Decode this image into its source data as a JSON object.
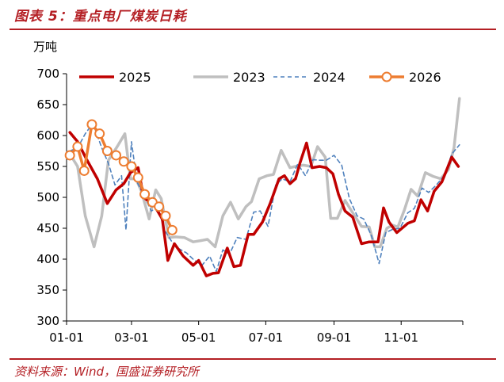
{
  "title": "图表 5：重点电厂煤炭日耗",
  "unit_label": "万吨",
  "source": "资料来源：Wind，国盛证券研究所",
  "chart_data": {
    "type": "line",
    "ylim": [
      300,
      700
    ],
    "yticks": [
      300,
      350,
      400,
      450,
      500,
      550,
      600,
      650,
      700
    ],
    "xlim": [
      0,
      360
    ],
    "xticks": [
      {
        "label": "01-01",
        "x": 0
      },
      {
        "label": "03-01",
        "x": 59
      },
      {
        "label": "05-01",
        "x": 120
      },
      {
        "label": "07-01",
        "x": 181
      },
      {
        "label": "09-01",
        "x": 243
      },
      {
        "label": "11-01",
        "x": 304
      }
    ],
    "legend": [
      "2025",
      "2023",
      "2024",
      "2026"
    ],
    "series": [
      {
        "name": "2025",
        "color": "#c00000",
        "width": 3.5,
        "dash": "",
        "markers": false,
        "points": [
          [
            3,
            605
          ],
          [
            10,
            590
          ],
          [
            18,
            562
          ],
          [
            28,
            530
          ],
          [
            37,
            490
          ],
          [
            45,
            512
          ],
          [
            52,
            522
          ],
          [
            58,
            540
          ],
          [
            65,
            548
          ],
          [
            70,
            500
          ],
          [
            80,
            486
          ],
          [
            87,
            465
          ],
          [
            92,
            398
          ],
          [
            98,
            425
          ],
          [
            106,
            405
          ],
          [
            115,
            390
          ],
          [
            120,
            398
          ],
          [
            127,
            373
          ],
          [
            133,
            377
          ],
          [
            138,
            378
          ],
          [
            146,
            418
          ],
          [
            152,
            388
          ],
          [
            158,
            390
          ],
          [
            165,
            440
          ],
          [
            170,
            440
          ],
          [
            178,
            460
          ],
          [
            185,
            490
          ],
          [
            193,
            530
          ],
          [
            198,
            535
          ],
          [
            203,
            522
          ],
          [
            208,
            530
          ],
          [
            212,
            555
          ],
          [
            218,
            588
          ],
          [
            223,
            548
          ],
          [
            230,
            550
          ],
          [
            236,
            548
          ],
          [
            242,
            538
          ],
          [
            247,
            505
          ],
          [
            253,
            478
          ],
          [
            260,
            468
          ],
          [
            268,
            425
          ],
          [
            275,
            428
          ],
          [
            283,
            428
          ],
          [
            288,
            483
          ],
          [
            293,
            460
          ],
          [
            300,
            443
          ],
          [
            310,
            458
          ],
          [
            316,
            462
          ],
          [
            322,
            496
          ],
          [
            328,
            478
          ],
          [
            334,
            510
          ],
          [
            341,
            525
          ],
          [
            350,
            565
          ],
          [
            356,
            550
          ]
        ]
      },
      {
        "name": "2023",
        "color": "#bfbfbf",
        "width": 3.5,
        "dash": "",
        "markers": false,
        "points": [
          [
            3,
            570
          ],
          [
            10,
            550
          ],
          [
            17,
            470
          ],
          [
            25,
            420
          ],
          [
            32,
            470
          ],
          [
            38,
            560
          ],
          [
            46,
            582
          ],
          [
            53,
            603
          ],
          [
            58,
            530
          ],
          [
            63,
            530
          ],
          [
            68,
            510
          ],
          [
            75,
            465
          ],
          [
            81,
            512
          ],
          [
            86,
            498
          ],
          [
            93,
            435
          ],
          [
            99,
            436
          ],
          [
            107,
            435
          ],
          [
            115,
            428
          ],
          [
            122,
            430
          ],
          [
            128,
            432
          ],
          [
            135,
            420
          ],
          [
            142,
            470
          ],
          [
            149,
            492
          ],
          [
            156,
            465
          ],
          [
            163,
            485
          ],
          [
            168,
            493
          ],
          [
            175,
            530
          ],
          [
            182,
            535
          ],
          [
            188,
            537
          ],
          [
            195,
            576
          ],
          [
            203,
            548
          ],
          [
            208,
            550
          ],
          [
            215,
            552
          ],
          [
            222,
            550
          ],
          [
            228,
            582
          ],
          [
            235,
            565
          ],
          [
            240,
            466
          ],
          [
            246,
            466
          ],
          [
            253,
            495
          ],
          [
            260,
            475
          ],
          [
            268,
            453
          ],
          [
            275,
            452
          ],
          [
            280,
            420
          ],
          [
            285,
            420
          ],
          [
            291,
            450
          ],
          [
            296,
            455
          ],
          [
            301,
            452
          ],
          [
            307,
            480
          ],
          [
            313,
            513
          ],
          [
            319,
            502
          ],
          [
            326,
            540
          ],
          [
            333,
            534
          ],
          [
            340,
            530
          ],
          [
            347,
            545
          ],
          [
            352,
            580
          ],
          [
            357,
            660
          ]
        ]
      },
      {
        "name": "2024",
        "color": "#4f81bd",
        "width": 1.6,
        "dash": "5,4",
        "markers": false,
        "points": [
          [
            3,
            575
          ],
          [
            10,
            580
          ],
          [
            17,
            603
          ],
          [
            24,
            620
          ],
          [
            32,
            580
          ],
          [
            38,
            555
          ],
          [
            44,
            520
          ],
          [
            50,
            535
          ],
          [
            54,
            447
          ],
          [
            59,
            590
          ],
          [
            64,
            525
          ],
          [
            71,
            500
          ],
          [
            77,
            478
          ],
          [
            83,
            484
          ],
          [
            89,
            447
          ],
          [
            95,
            430
          ],
          [
            101,
            418
          ],
          [
            109,
            410
          ],
          [
            115,
            400
          ],
          [
            123,
            390
          ],
          [
            130,
            405
          ],
          [
            136,
            380
          ],
          [
            142,
            415
          ],
          [
            148,
            408
          ],
          [
            155,
            435
          ],
          [
            163,
            432
          ],
          [
            170,
            476
          ],
          [
            176,
            478
          ],
          [
            183,
            453
          ],
          [
            190,
            520
          ],
          [
            196,
            530
          ],
          [
            203,
            525
          ],
          [
            210,
            554
          ],
          [
            217,
            535
          ],
          [
            224,
            561
          ],
          [
            230,
            560
          ],
          [
            236,
            560
          ],
          [
            243,
            568
          ],
          [
            250,
            552
          ],
          [
            257,
            498
          ],
          [
            264,
            470
          ],
          [
            270,
            465
          ],
          [
            277,
            438
          ],
          [
            284,
            393
          ],
          [
            290,
            443
          ],
          [
            296,
            448
          ],
          [
            303,
            450
          ],
          [
            310,
            475
          ],
          [
            316,
            482
          ],
          [
            323,
            515
          ],
          [
            329,
            508
          ],
          [
            336,
            520
          ],
          [
            343,
            535
          ],
          [
            350,
            570
          ],
          [
            357,
            585
          ]
        ]
      },
      {
        "name": "2026",
        "color": "#ed7d31",
        "width": 3.5,
        "dash": "",
        "markers": true,
        "points": [
          [
            3,
            568
          ],
          [
            10,
            582
          ],
          [
            16,
            543
          ],
          [
            23,
            618
          ],
          [
            30,
            603
          ],
          [
            37,
            575
          ],
          [
            45,
            568
          ],
          [
            52,
            558
          ],
          [
            59,
            550
          ],
          [
            65,
            532
          ],
          [
            71,
            505
          ],
          [
            78,
            492
          ],
          [
            84,
            485
          ],
          [
            90,
            470
          ],
          [
            96,
            447
          ]
        ]
      }
    ]
  }
}
